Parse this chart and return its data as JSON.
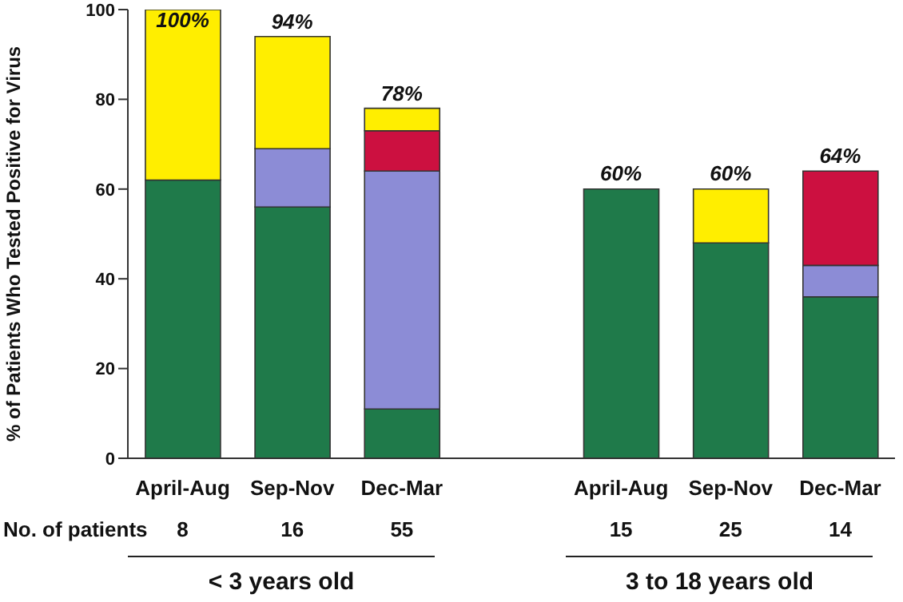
{
  "chart_data": {
    "type": "bar",
    "stacked": true,
    "ylabel": "% of Patients Who Tested Positive for Virus",
    "categories": [
      "April-Aug",
      "Sep-Nov",
      "Dec-Mar",
      null,
      "April-Aug",
      "Sep-Nov",
      "Dec-Mar"
    ],
    "series": [
      {
        "color": "#1f7a4a",
        "values": [
          62,
          56,
          11,
          null,
          60,
          48,
          36
        ]
      },
      {
        "color": "#8c8cd6",
        "values": [
          null,
          13,
          53,
          null,
          null,
          null,
          7
        ]
      },
      {
        "color": "#cc1040",
        "values": [
          null,
          null,
          9,
          null,
          null,
          null,
          21
        ]
      },
      {
        "color": "#ffee00",
        "values": [
          38,
          25,
          5,
          null,
          null,
          12,
          null
        ]
      }
    ],
    "totals": [
      "100%",
      "94%",
      "78%",
      null,
      "60%",
      "60%",
      "64%"
    ],
    "ylim": [
      0,
      100
    ],
    "yticks": [
      0,
      20,
      40,
      60,
      80,
      100
    ],
    "annotations": [
      "No. of patients",
      "8",
      "16",
      "55",
      "15",
      "25",
      "14",
      "< 3 years old",
      "3 to 18 years old"
    ],
    "legend": false,
    "grid": false
  }
}
